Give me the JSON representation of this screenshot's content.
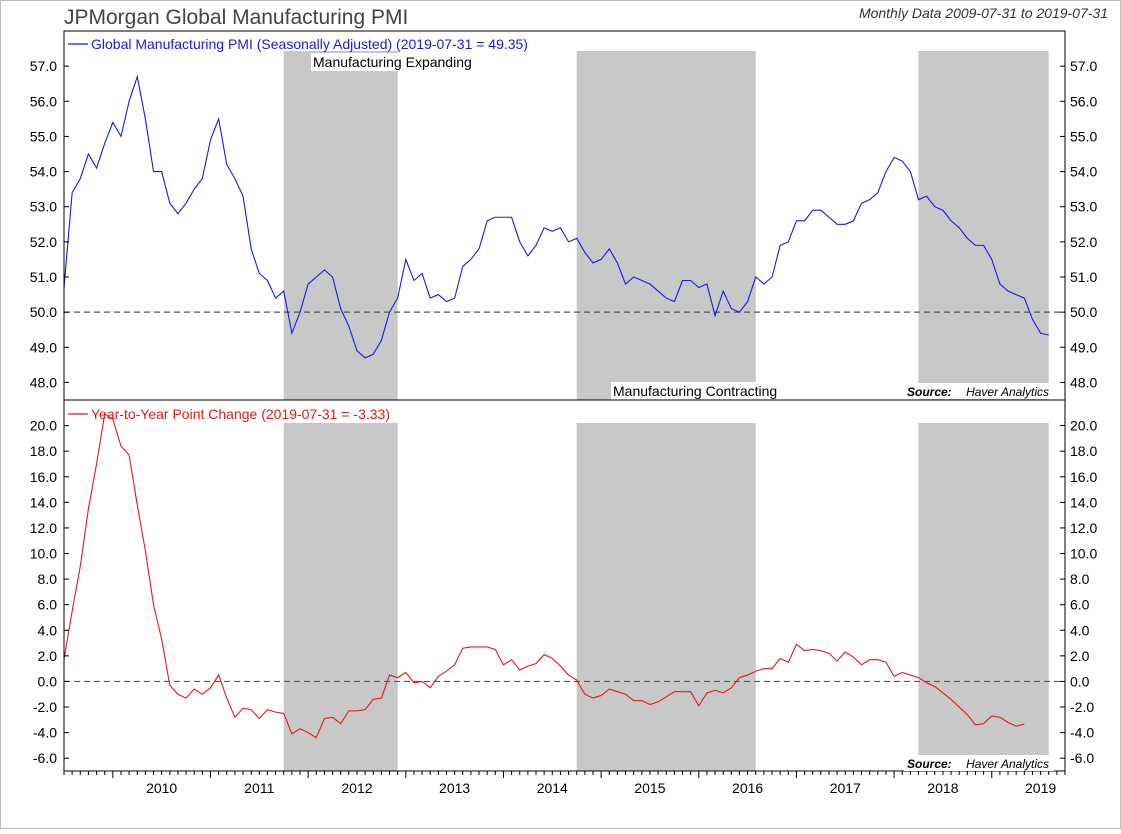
{
  "header": {
    "title": "JPMorgan Global Manufacturing PMI",
    "date_range": "Monthly Data 2009-07-31 to 2019-07-31"
  },
  "colors": {
    "pmi": "#1a1ae0",
    "yoy": "#e01a1a",
    "shade": "#c8c8c8",
    "axis": "#000000",
    "ref": "#555555"
  },
  "annotations": {
    "expanding": "Manufacturing Expanding",
    "contracting": "Manufacturing Contracting",
    "source_label": "Source:",
    "source_name": "Haver Analytics"
  },
  "x_axis": {
    "years": [
      "2010",
      "2011",
      "2012",
      "2013",
      "2014",
      "2015",
      "2016",
      "2017",
      "2018",
      "2019"
    ]
  },
  "shaded_periods": [
    {
      "start": "2011-10",
      "end": "2012-12"
    },
    {
      "start": "2014-10",
      "end": "2016-08"
    },
    {
      "start": "2018-04",
      "end": "2019-08"
    }
  ],
  "chart_data": [
    {
      "type": "line",
      "legend": "Global Manufacturing PMI (Seasonally Adjusted) (2019-07-31 = 49.35)",
      "start": "2009-07",
      "ylim": [
        47.5,
        58.0
      ],
      "yticks": [
        "48.0",
        "49.0",
        "50.0",
        "51.0",
        "52.0",
        "53.0",
        "54.0",
        "55.0",
        "56.0",
        "57.0"
      ],
      "reference_line": 50.0,
      "series": [
        {
          "name": "Global Manufacturing PMI (Seasonally Adjusted)",
          "values": [
            50.7,
            53.4,
            53.8,
            54.5,
            54.1,
            54.8,
            55.4,
            55.0,
            56.0,
            56.7,
            55.5,
            54.0,
            54.0,
            53.1,
            52.8,
            53.1,
            53.5,
            53.8,
            54.9,
            55.5,
            54.2,
            53.8,
            53.3,
            51.8,
            51.1,
            50.9,
            50.4,
            50.6,
            49.4,
            50.0,
            50.8,
            51.0,
            51.2,
            51.0,
            50.1,
            49.6,
            48.9,
            48.7,
            48.8,
            49.2,
            50.0,
            50.4,
            51.5,
            50.9,
            51.1,
            50.4,
            50.5,
            50.3,
            50.4,
            51.3,
            51.5,
            51.8,
            52.6,
            52.7,
            52.7,
            52.7,
            52.0,
            51.6,
            51.9,
            52.4,
            52.3,
            52.4,
            52.0,
            52.1,
            51.7,
            51.4,
            51.5,
            51.8,
            51.4,
            50.8,
            51.0,
            50.9,
            50.8,
            50.6,
            50.4,
            50.3,
            50.9,
            50.9,
            50.7,
            50.8,
            49.9,
            50.6,
            50.1,
            50.0,
            50.3,
            51.0,
            50.8,
            51.0,
            51.9,
            52.0,
            52.6,
            52.6,
            52.9,
            52.9,
            52.7,
            52.5,
            52.5,
            52.6,
            53.1,
            53.2,
            53.4,
            54.0,
            54.4,
            54.3,
            54.0,
            53.2,
            53.3,
            53.0,
            52.9,
            52.6,
            52.4,
            52.1,
            51.9,
            51.9,
            51.5,
            50.8,
            50.6,
            50.5,
            50.4,
            49.8,
            49.4,
            49.35
          ]
        }
      ]
    },
    {
      "type": "line",
      "legend": "Year-to-Year Point Change (2019-07-31 = -3.33)",
      "start": "2009-07",
      "ylim": [
        -7.0,
        22.0
      ],
      "yticks": [
        "-6.0",
        "-4.0",
        "-2.0",
        "0.0",
        "2.0",
        "4.0",
        "6.0",
        "8.0",
        "10.0",
        "12.0",
        "14.0",
        "16.0",
        "18.0",
        "20.0"
      ],
      "reference_line": 0.0,
      "series": [
        {
          "name": "Year-to-Year Point Change",
          "values": [
            1.7,
            5.5,
            9.0,
            13.5,
            17.0,
            20.9,
            20.5,
            18.4,
            17.7,
            13.8,
            10.2,
            6.0,
            3.3,
            -0.3,
            -1.0,
            -1.3,
            -0.6,
            -1.0,
            -0.5,
            0.5,
            -1.3,
            -2.8,
            -2.1,
            -2.2,
            -2.9,
            -2.2,
            -2.4,
            -2.5,
            -4.1,
            -3.7,
            -4.0,
            -4.4,
            -2.9,
            -2.8,
            -3.3,
            -2.3,
            -2.3,
            -2.2,
            -1.4,
            -1.3,
            0.5,
            0.3,
            0.7,
            -0.1,
            0.0,
            -0.5,
            0.4,
            0.8,
            1.3,
            2.6,
            2.7,
            2.7,
            2.7,
            2.5,
            1.3,
            1.7,
            0.9,
            1.2,
            1.4,
            2.1,
            1.8,
            1.2,
            0.5,
            0.1,
            -1.0,
            -1.3,
            -1.1,
            -0.6,
            -0.8,
            -1.0,
            -1.5,
            -1.5,
            -1.8,
            -1.6,
            -1.2,
            -0.8,
            -0.8,
            -0.8,
            -1.9,
            -0.9,
            -0.7,
            -0.9,
            -0.5,
            0.3,
            0.5,
            0.8,
            1.0,
            1.0,
            1.8,
            1.5,
            2.9,
            2.4,
            2.5,
            2.4,
            2.2,
            1.6,
            2.3,
            1.9,
            1.3,
            1.7,
            1.7,
            1.5,
            0.4,
            0.7,
            0.5,
            0.3,
            -0.1,
            -0.4,
            -0.9,
            -1.4,
            -2.0,
            -2.6,
            -3.4,
            -3.3,
            -2.7,
            -2.8,
            -3.2,
            -3.5,
            -3.33
          ]
        }
      ]
    }
  ]
}
